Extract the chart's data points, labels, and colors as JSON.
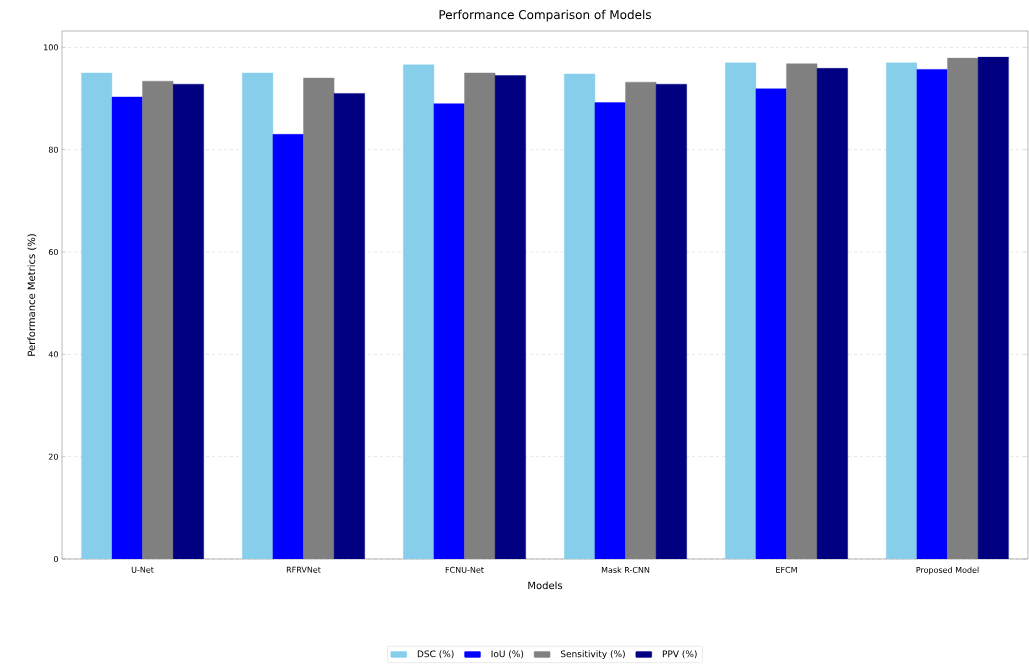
{
  "chart_data": {
    "type": "bar",
    "title": "Performance Comparison of Models",
    "xlabel": "Models",
    "ylabel": "Performance Metrics (%)",
    "categories": [
      "U-Net",
      "RFRVNet",
      "FCNU-Net",
      "Mask R-CNN",
      "EFCM",
      "Proposed Model"
    ],
    "series": [
      {
        "name": "DSC (%)",
        "color": "#87ceeb",
        "values": [
          95.0,
          95.0,
          96.6,
          94.8,
          97.0,
          97.0
        ]
      },
      {
        "name": "IoU (%)",
        "color": "#0000ff",
        "values": [
          90.3,
          83.0,
          89.0,
          89.2,
          91.9,
          95.7
        ]
      },
      {
        "name": "Sensitivity (%)",
        "color": "#808080",
        "values": [
          93.4,
          94.0,
          95.0,
          93.2,
          96.8,
          97.9
        ]
      },
      {
        "name": "PPV (%)",
        "color": "#000080",
        "values": [
          92.8,
          91.0,
          94.5,
          92.8,
          95.9,
          98.1
        ]
      }
    ],
    "ylim": [
      0,
      103.2
    ],
    "yticks": [
      0,
      20,
      40,
      60,
      80,
      100
    ],
    "grid": "y",
    "legend": "bottom"
  }
}
